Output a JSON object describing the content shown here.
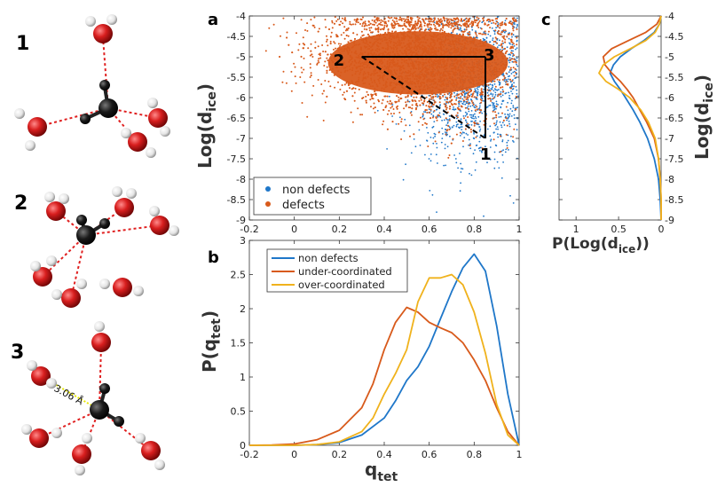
{
  "panels": {
    "a": "a",
    "b": "b",
    "c": "c"
  },
  "molecules": {
    "labels": [
      "1",
      "2",
      "3"
    ],
    "distance_label": "3.06 Å",
    "colors": {
      "oxygen": "#d81e1e",
      "hydrogen": "#f2f2f2",
      "carbon": "#111111",
      "bond": "#e02020",
      "highlight": "#e8e800"
    }
  },
  "chart_data": [
    {
      "id": "a",
      "type": "scatter",
      "xlim": [
        -0.2,
        1
      ],
      "ylim": [
        -9,
        -4
      ],
      "xticks": [
        "-0.2",
        "0",
        "0.2",
        "0.4",
        "0.6",
        "0.8",
        "1"
      ],
      "yticks": [
        "-4",
        "-4.5",
        "-5",
        "-5.5",
        "-6",
        "-6.5",
        "-7",
        "-7.5",
        "-8",
        "-8.5",
        "-9"
      ],
      "ylabel_main": "Log(d",
      "ylabel_sub": "ice",
      "ylabel_close": ")",
      "legend": [
        {
          "name": "non defects",
          "color": "#1f77c9"
        },
        {
          "name": "defects",
          "color": "#d85a1b"
        }
      ],
      "triangle": {
        "points": [
          {
            "label": "1",
            "x": 0.85,
            "y": -7.0
          },
          {
            "label": "2",
            "x": 0.3,
            "y": -5.0
          },
          {
            "label": "3",
            "x": 0.85,
            "y": -5.0
          }
        ]
      }
    },
    {
      "id": "b",
      "type": "line",
      "xlim": [
        -0.2,
        1
      ],
      "ylim": [
        0,
        3
      ],
      "xticks": [
        "-0.2",
        "0",
        "0.2",
        "0.4",
        "0.6",
        "0.8",
        "1"
      ],
      "yticks": [
        "0",
        "0.5",
        "1",
        "1.5",
        "2",
        "2.5",
        "3"
      ],
      "xlabel_main": "q",
      "xlabel_sub": "tet",
      "ylabel_main": "P(q",
      "ylabel_sub": "tet",
      "ylabel_close": ")",
      "series": [
        {
          "name": "non defects",
          "color": "#1f77c9",
          "x": [
            -0.2,
            0,
            0.1,
            0.2,
            0.3,
            0.4,
            0.45,
            0.5,
            0.55,
            0.6,
            0.65,
            0.7,
            0.75,
            0.8,
            0.85,
            0.9,
            0.95,
            1.0
          ],
          "y": [
            0,
            0.0,
            0.01,
            0.04,
            0.15,
            0.4,
            0.65,
            0.95,
            1.15,
            1.45,
            1.85,
            2.25,
            2.6,
            2.8,
            2.55,
            1.75,
            0.75,
            0.0
          ]
        },
        {
          "name": "under-coordinated",
          "color": "#d85a1b",
          "x": [
            -0.2,
            -0.1,
            0,
            0.1,
            0.2,
            0.3,
            0.35,
            0.4,
            0.45,
            0.5,
            0.55,
            0.6,
            0.65,
            0.7,
            0.75,
            0.8,
            0.85,
            0.9,
            0.95,
            1.0
          ],
          "y": [
            0,
            0.005,
            0.02,
            0.08,
            0.22,
            0.55,
            0.9,
            1.4,
            1.8,
            2.02,
            1.95,
            1.8,
            1.72,
            1.65,
            1.5,
            1.25,
            0.95,
            0.55,
            0.2,
            0.0
          ]
        },
        {
          "name": "over-coordinated",
          "color": "#f0b21c",
          "x": [
            -0.2,
            0,
            0.1,
            0.2,
            0.3,
            0.35,
            0.4,
            0.45,
            0.5,
            0.55,
            0.6,
            0.65,
            0.7,
            0.75,
            0.8,
            0.85,
            0.9,
            0.95,
            1.0
          ],
          "y": [
            0,
            0,
            0.01,
            0.05,
            0.2,
            0.4,
            0.75,
            1.05,
            1.4,
            2.1,
            2.45,
            2.45,
            2.5,
            2.35,
            1.95,
            1.35,
            0.6,
            0.15,
            0.0
          ]
        }
      ]
    },
    {
      "id": "c",
      "type": "line",
      "orientation": "horizontal",
      "xlim": [
        1.2,
        0
      ],
      "ylim": [
        -9,
        -4
      ],
      "xticks": [
        "1",
        "0.5",
        "0"
      ],
      "yticks": [
        "-4",
        "-4.5",
        "-5",
        "-5.5",
        "-6",
        "-6.5",
        "-7",
        "-7.5",
        "-8",
        "-8.5",
        "-9"
      ],
      "xlabel_main": "P(Log(d",
      "xlabel_sub": "ice",
      "xlabel_close": "))",
      "ylabel_main": "Log(d",
      "ylabel_sub": "ice",
      "ylabel_close": ")",
      "series": [
        {
          "name": "non defects",
          "color": "#1f77c9",
          "logd": [
            -4,
            -4.2,
            -4.4,
            -4.6,
            -4.8,
            -5.0,
            -5.2,
            -5.4,
            -5.6,
            -5.8,
            -6.0,
            -6.3,
            -6.6,
            -7.0,
            -7.5,
            -8.0,
            -8.5,
            -9.0
          ],
          "p": [
            0.0,
            0.02,
            0.08,
            0.2,
            0.35,
            0.48,
            0.56,
            0.6,
            0.55,
            0.48,
            0.42,
            0.33,
            0.25,
            0.16,
            0.08,
            0.03,
            0.01,
            0.0
          ]
        },
        {
          "name": "under-coordinated",
          "color": "#d85a1b",
          "logd": [
            -4,
            -4.2,
            -4.4,
            -4.6,
            -4.8,
            -5.0,
            -5.2,
            -5.4,
            -5.6,
            -5.8,
            -6.0,
            -6.3,
            -6.6,
            -7.0,
            -7.5,
            -8.0,
            -8.5,
            -9.0
          ],
          "p": [
            0.0,
            0.05,
            0.18,
            0.38,
            0.58,
            0.68,
            0.66,
            0.58,
            0.48,
            0.4,
            0.33,
            0.25,
            0.17,
            0.08,
            0.03,
            0.01,
            0.0,
            0.0
          ]
        },
        {
          "name": "over-coordinated",
          "color": "#f0b21c",
          "logd": [
            -4,
            -4.2,
            -4.4,
            -4.6,
            -4.8,
            -5.0,
            -5.2,
            -5.4,
            -5.6,
            -5.8,
            -6.0,
            -6.3,
            -6.6,
            -7.0,
            -7.5,
            -8.0,
            -8.5,
            -9.0
          ],
          "p": [
            0.0,
            0.02,
            0.07,
            0.18,
            0.36,
            0.55,
            0.68,
            0.73,
            0.65,
            0.5,
            0.37,
            0.24,
            0.15,
            0.07,
            0.03,
            0.01,
            0.0,
            0.0
          ]
        }
      ]
    }
  ]
}
